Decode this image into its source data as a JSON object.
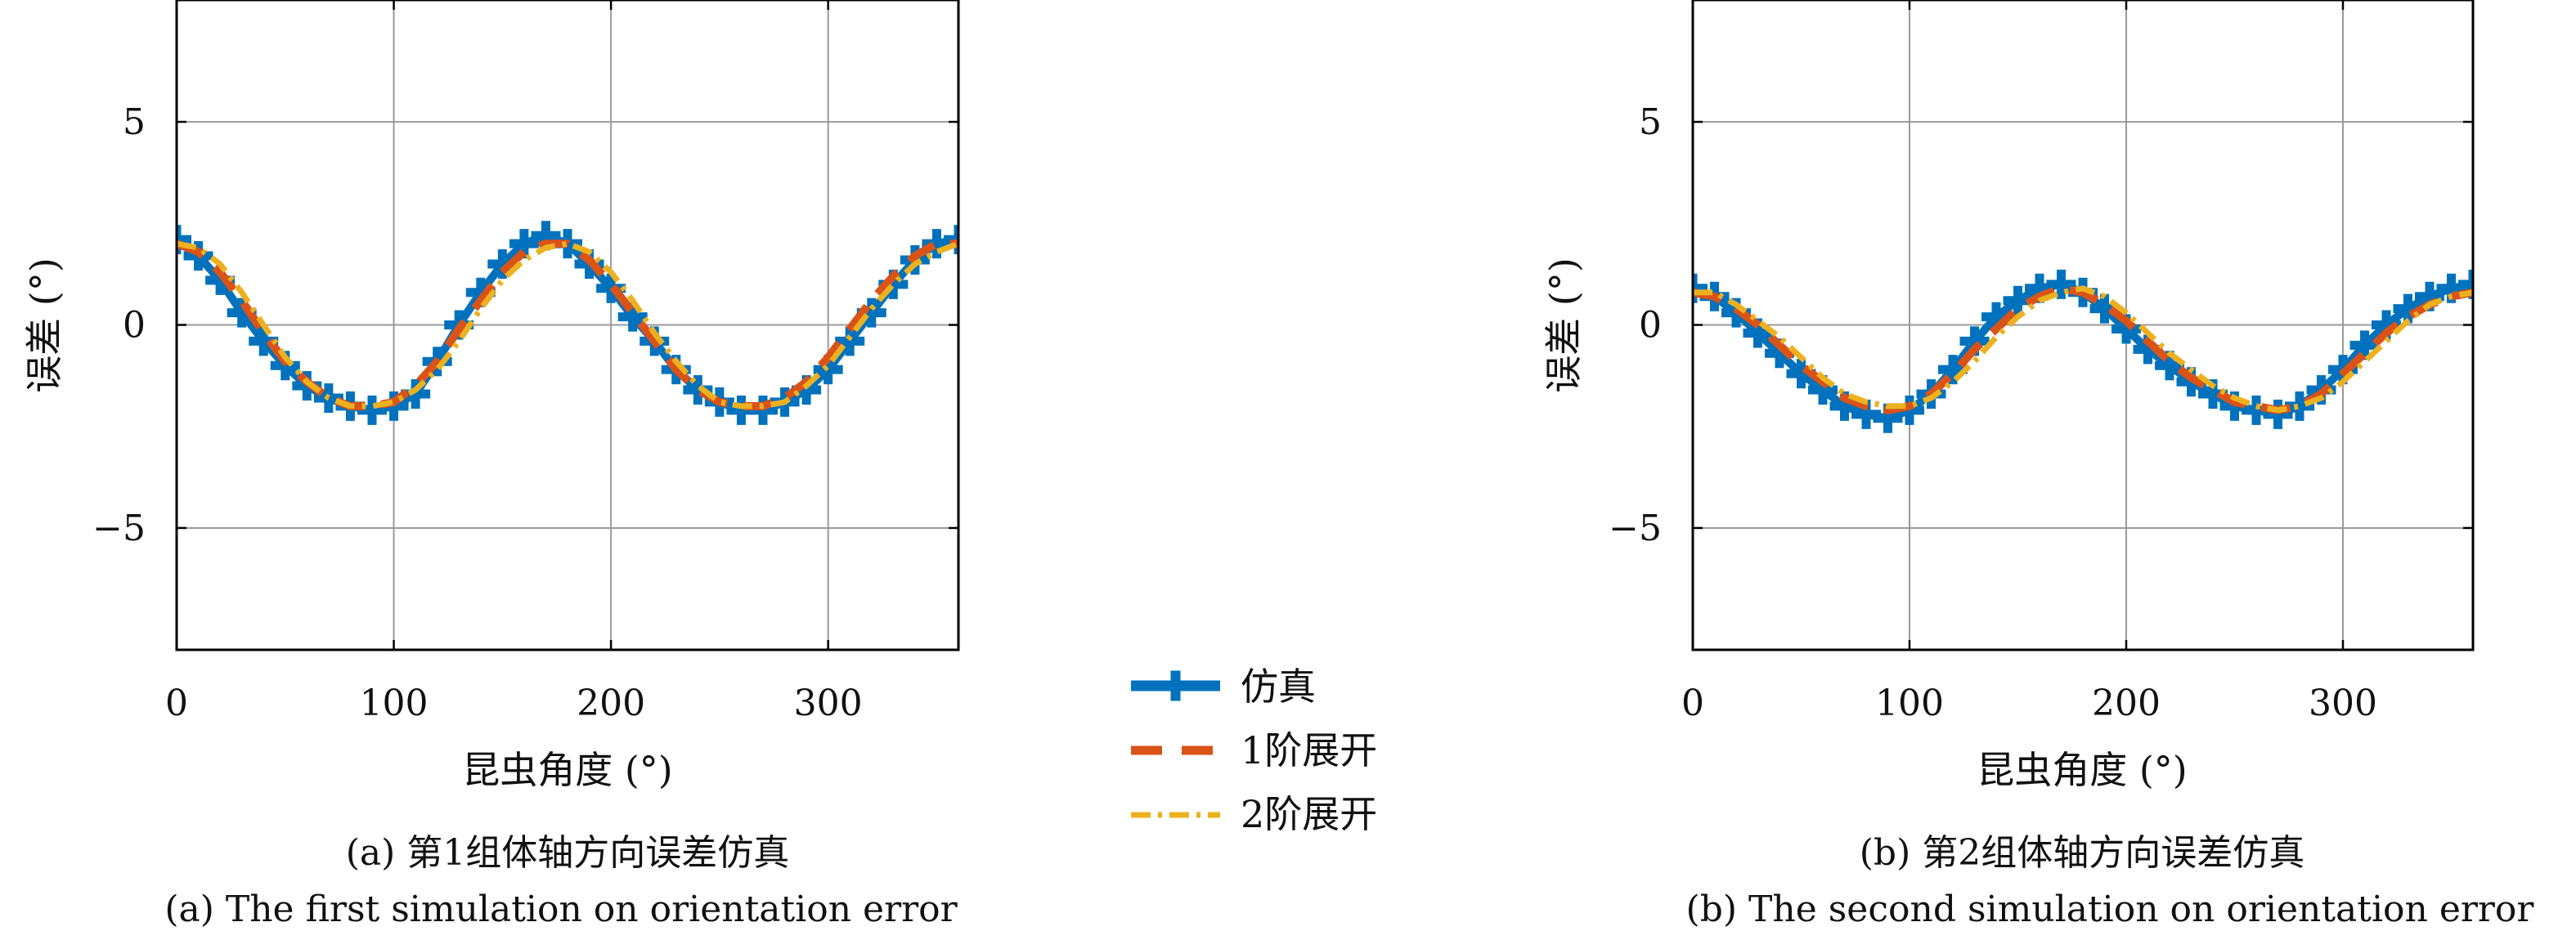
{
  "chart_data": [
    {
      "type": "line",
      "xlabel": "昆虫角度 (°)",
      "ylabel": "误差 (°)",
      "xlim": [
        0,
        360
      ],
      "ylim": [
        -8,
        8
      ],
      "xticks": [
        0,
        100,
        200,
        300
      ],
      "yticks": [
        5,
        0,
        -5
      ],
      "ytick_labels": [
        "5",
        "0",
        "−5"
      ],
      "grid": true,
      "caption_cn": "(a) 第1组体轴方向误差仿真",
      "caption_en": "(a) The first simulation on orientation error",
      "series": [
        {
          "name": "仿真",
          "x": [
            0,
            10,
            20,
            30,
            40,
            50,
            60,
            70,
            80,
            90,
            100,
            110,
            120,
            130,
            140,
            150,
            160,
            170,
            180,
            190,
            200,
            210,
            220,
            230,
            240,
            250,
            260,
            270,
            280,
            290,
            300,
            310,
            320,
            330,
            340,
            350,
            360
          ],
          "values": [
            2.1,
            1.7,
            1.1,
            0.3,
            -0.4,
            -1.0,
            -1.5,
            -1.8,
            -2.0,
            -2.1,
            -2.0,
            -1.7,
            -0.9,
            0.0,
            0.8,
            1.5,
            2.0,
            2.2,
            2.0,
            1.5,
            0.9,
            0.2,
            -0.4,
            -1.1,
            -1.6,
            -1.9,
            -2.1,
            -2.1,
            -1.9,
            -1.6,
            -1.1,
            -0.4,
            0.3,
            1.0,
            1.6,
            2.0,
            2.1
          ]
        },
        {
          "name": "1阶展开",
          "x": [
            0,
            10,
            20,
            30,
            40,
            50,
            60,
            70,
            80,
            90,
            100,
            110,
            120,
            130,
            140,
            150,
            160,
            170,
            180,
            190,
            200,
            210,
            220,
            230,
            240,
            250,
            260,
            270,
            280,
            290,
            300,
            310,
            320,
            330,
            340,
            350,
            360
          ],
          "values": [
            2.0,
            1.8,
            1.3,
            0.6,
            -0.2,
            -0.9,
            -1.4,
            -1.8,
            -2.0,
            -2.0,
            -1.9,
            -1.5,
            -0.9,
            -0.1,
            0.6,
            1.3,
            1.8,
            2.0,
            2.0,
            1.6,
            1.0,
            0.3,
            -0.4,
            -1.1,
            -1.6,
            -1.9,
            -2.0,
            -2.0,
            -1.8,
            -1.4,
            -0.8,
            -0.1,
            0.6,
            1.2,
            1.7,
            2.0,
            2.0
          ]
        },
        {
          "name": "2阶展开",
          "x": [
            0,
            10,
            20,
            30,
            40,
            50,
            60,
            70,
            80,
            90,
            100,
            110,
            120,
            130,
            140,
            150,
            160,
            170,
            180,
            190,
            200,
            210,
            220,
            230,
            240,
            250,
            260,
            270,
            280,
            290,
            300,
            310,
            320,
            330,
            340,
            350,
            360
          ],
          "values": [
            2.0,
            1.9,
            1.5,
            0.8,
            0.0,
            -0.8,
            -1.4,
            -1.8,
            -2.0,
            -2.0,
            -1.9,
            -1.6,
            -1.1,
            -0.4,
            0.4,
            1.1,
            1.6,
            1.9,
            2.0,
            1.8,
            1.3,
            0.6,
            -0.2,
            -0.9,
            -1.5,
            -1.9,
            -2.0,
            -2.0,
            -1.9,
            -1.5,
            -1.0,
            -0.3,
            0.4,
            1.0,
            1.5,
            1.8,
            2.0
          ]
        }
      ]
    },
    {
      "type": "line",
      "xlabel": "昆虫角度 (°)",
      "ylabel": "误差 (°)",
      "xlim": [
        0,
        360
      ],
      "ylim": [
        -8,
        8
      ],
      "xticks": [
        0,
        100,
        200,
        300
      ],
      "yticks": [
        5,
        0,
        -5
      ],
      "ytick_labels": [
        "5",
        "0",
        "−5"
      ],
      "grid": true,
      "caption_cn": "(b) 第2组体轴方向误差仿真",
      "caption_en": "(b) The second simulation on orientation error",
      "series": [
        {
          "name": "仿真",
          "x": [
            0,
            10,
            20,
            30,
            40,
            50,
            60,
            70,
            80,
            90,
            100,
            110,
            120,
            130,
            140,
            150,
            160,
            170,
            180,
            190,
            200,
            210,
            220,
            230,
            240,
            250,
            260,
            270,
            280,
            290,
            300,
            310,
            320,
            330,
            340,
            350,
            360
          ],
          "values": [
            0.9,
            0.7,
            0.3,
            -0.2,
            -0.7,
            -1.2,
            -1.6,
            -2.0,
            -2.2,
            -2.3,
            -2.1,
            -1.7,
            -1.1,
            -0.4,
            0.2,
            0.6,
            0.9,
            1.0,
            0.8,
            0.4,
            -0.1,
            -0.6,
            -1.0,
            -1.4,
            -1.7,
            -2.0,
            -2.1,
            -2.2,
            -2.0,
            -1.6,
            -1.1,
            -0.5,
            0.0,
            0.4,
            0.7,
            0.9,
            1.0
          ]
        },
        {
          "name": "1阶展开",
          "x": [
            0,
            10,
            20,
            30,
            40,
            50,
            60,
            70,
            80,
            90,
            100,
            110,
            120,
            130,
            140,
            150,
            160,
            170,
            180,
            190,
            200,
            210,
            220,
            230,
            240,
            250,
            260,
            270,
            280,
            290,
            300,
            310,
            320,
            330,
            340,
            350,
            360
          ],
          "values": [
            0.8,
            0.7,
            0.4,
            0.0,
            -0.5,
            -1.0,
            -1.4,
            -1.8,
            -2.0,
            -2.1,
            -2.0,
            -1.7,
            -1.2,
            -0.6,
            -0.1,
            0.4,
            0.7,
            0.9,
            0.8,
            0.5,
            0.1,
            -0.4,
            -0.9,
            -1.3,
            -1.6,
            -1.9,
            -2.0,
            -2.1,
            -2.0,
            -1.7,
            -1.2,
            -0.7,
            -0.2,
            0.2,
            0.5,
            0.7,
            0.8
          ]
        },
        {
          "name": "2阶展开",
          "x": [
            0,
            10,
            20,
            30,
            40,
            50,
            60,
            70,
            80,
            90,
            100,
            110,
            120,
            130,
            140,
            150,
            160,
            170,
            180,
            190,
            200,
            210,
            220,
            230,
            240,
            250,
            260,
            270,
            280,
            290,
            300,
            310,
            320,
            330,
            340,
            350,
            360
          ],
          "values": [
            0.8,
            0.8,
            0.5,
            0.1,
            -0.3,
            -0.8,
            -1.3,
            -1.7,
            -1.9,
            -2.0,
            -2.0,
            -1.8,
            -1.4,
            -0.9,
            -0.3,
            0.2,
            0.6,
            0.8,
            0.9,
            0.7,
            0.3,
            -0.2,
            -0.7,
            -1.1,
            -1.5,
            -1.8,
            -2.0,
            -2.1,
            -2.0,
            -1.8,
            -1.4,
            -0.9,
            -0.4,
            0.1,
            0.5,
            0.7,
            0.8
          ]
        }
      ]
    }
  ],
  "legend": {
    "position": "center",
    "items": [
      {
        "label": "仿真",
        "color": "#0072BD",
        "style": "solid-plus"
      },
      {
        "label": "1阶展开",
        "color": "#D95319",
        "style": "dashed"
      },
      {
        "label": "2阶展开",
        "color": "#EDB120",
        "style": "dash-dot"
      }
    ]
  }
}
